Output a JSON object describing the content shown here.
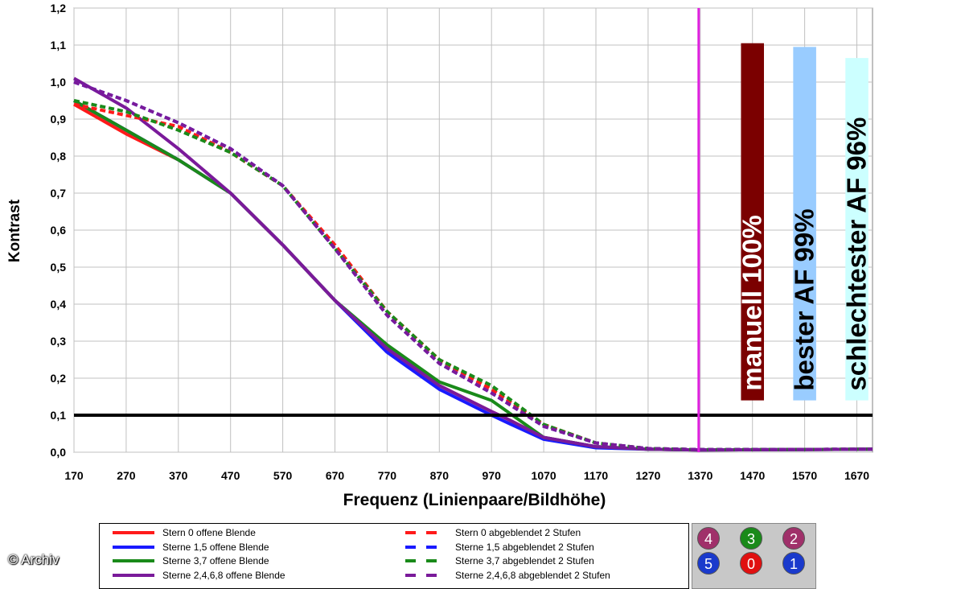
{
  "chart_data": {
    "type": "line",
    "title": "",
    "xlabel": "Frequenz (Linienpaare/Bildhöhe)",
    "ylabel": "Kontrast",
    "xlim": [
      170,
      1700
    ],
    "ylim": [
      0,
      1.2
    ],
    "x_ticks": [
      "170",
      "270",
      "370",
      "470",
      "570",
      "670",
      "770",
      "870",
      "970",
      "1070",
      "1170",
      "1270",
      "1370",
      "1470",
      "1570",
      "1670"
    ],
    "y_ticks": [
      "0,0",
      "0,1",
      "0,2",
      "0,3",
      "0,4",
      "0,5",
      "0,6",
      "0,7",
      "0,8",
      "0,9",
      "1,0",
      "1,1",
      "1,2"
    ],
    "grid": true,
    "reference_hline": 0.1,
    "reference_vline": 1370,
    "series": [
      {
        "name": "Stern 0 offene Blende",
        "color": "#ff1a1a",
        "dash": false,
        "x": [
          170,
          270,
          370,
          470,
          570,
          670,
          770,
          870,
          970,
          1000,
          1070,
          1170,
          1270,
          1370,
          1700
        ],
        "y": [
          0.94,
          0.86,
          0.79,
          0.7,
          0.56,
          0.41,
          0.28,
          0.18,
          0.11,
          0.09,
          0.04,
          0.015,
          0.008,
          0.006,
          0.008
        ]
      },
      {
        "name": "Sterne 1,5 offene Blende",
        "color": "#1a1aff",
        "dash": false,
        "x": [
          170,
          270,
          370,
          470,
          570,
          670,
          770,
          870,
          970,
          1000,
          1070,
          1170,
          1270,
          1370,
          1700
        ],
        "y": [
          0.95,
          0.87,
          0.79,
          0.7,
          0.56,
          0.41,
          0.27,
          0.17,
          0.1,
          0.08,
          0.035,
          0.012,
          0.008,
          0.006,
          0.008
        ]
      },
      {
        "name": "Sterne 3,7 offene Blende",
        "color": "#1a8a1a",
        "dash": false,
        "x": [
          170,
          270,
          370,
          470,
          570,
          670,
          770,
          870,
          970,
          1000,
          1070,
          1170,
          1270,
          1370,
          1700
        ],
        "y": [
          0.95,
          0.87,
          0.79,
          0.7,
          0.56,
          0.41,
          0.29,
          0.19,
          0.14,
          0.11,
          0.04,
          0.015,
          0.008,
          0.006,
          0.008
        ]
      },
      {
        "name": "Sterne 2,4,6,8 offene Blende",
        "color": "#7a1a9a",
        "dash": false,
        "x": [
          170,
          270,
          370,
          470,
          570,
          670,
          770,
          870,
          970,
          1000,
          1070,
          1170,
          1270,
          1370,
          1700
        ],
        "y": [
          1.01,
          0.93,
          0.82,
          0.7,
          0.56,
          0.41,
          0.28,
          0.18,
          0.11,
          0.09,
          0.04,
          0.015,
          0.008,
          0.006,
          0.008
        ]
      },
      {
        "name": "Stern 0 abgeblendet 2 Stufen",
        "color": "#ff1a1a",
        "dash": true,
        "x": [
          170,
          270,
          370,
          470,
          570,
          670,
          770,
          870,
          970,
          1070,
          1170,
          1270,
          1370,
          1700
        ],
        "y": [
          0.94,
          0.91,
          0.88,
          0.81,
          0.72,
          0.56,
          0.38,
          0.25,
          0.17,
          0.075,
          0.025,
          0.01,
          0.007,
          0.008
        ]
      },
      {
        "name": "Sterne 1,5 abgeblendet 2 Stufen",
        "color": "#1a1aff",
        "dash": true,
        "x": [
          170,
          270,
          370,
          470,
          570,
          670,
          770,
          870,
          970,
          1070,
          1170,
          1270,
          1370,
          1700
        ],
        "y": [
          1.0,
          0.95,
          0.89,
          0.82,
          0.72,
          0.55,
          0.37,
          0.24,
          0.16,
          0.07,
          0.025,
          0.01,
          0.007,
          0.008
        ]
      },
      {
        "name": "Sterne 3,7 abgeblendet 2 Stufen",
        "color": "#1a8a1a",
        "dash": true,
        "x": [
          170,
          270,
          370,
          470,
          570,
          670,
          770,
          870,
          970,
          1070,
          1170,
          1270,
          1370,
          1700
        ],
        "y": [
          0.95,
          0.92,
          0.87,
          0.81,
          0.72,
          0.55,
          0.38,
          0.25,
          0.18,
          0.075,
          0.025,
          0.01,
          0.007,
          0.008
        ]
      },
      {
        "name": "Sterne 2,4,6,8 abgeblendet 2 Stufen",
        "color": "#7a1a9a",
        "dash": true,
        "x": [
          170,
          270,
          370,
          470,
          570,
          670,
          770,
          870,
          970,
          1070,
          1170,
          1270,
          1370,
          1700
        ],
        "y": [
          1.0,
          0.95,
          0.89,
          0.82,
          0.72,
          0.55,
          0.37,
          0.24,
          0.16,
          0.07,
          0.025,
          0.01,
          0.007,
          0.008
        ]
      }
    ],
    "bars": [
      {
        "label": "manuell 100%",
        "value": 1.105,
        "color": "#7b0000",
        "text_color": "#ffffff"
      },
      {
        "label": "bester AF 99%",
        "value": 1.095,
        "color": "#99ccff",
        "text_color": "#000000"
      },
      {
        "label": "schlechtester AF 96%",
        "value": 1.065,
        "color": "#ccffff",
        "text_color": "#000000"
      }
    ]
  },
  "legend": {
    "col1": [
      {
        "label": "Stern 0 offene Blende",
        "color": "#ff1a1a",
        "dash": false
      },
      {
        "label": "Sterne 1,5 offene Blende",
        "color": "#1a1aff",
        "dash": false
      },
      {
        "label": "Sterne 3,7 offene Blende",
        "color": "#1a8a1a",
        "dash": false
      },
      {
        "label": "Sterne 2,4,6,8 offene Blende",
        "color": "#7a1a9a",
        "dash": false
      }
    ],
    "col2": [
      {
        "label": "Stern 0 abgeblendet 2 Stufen",
        "color": "#ff1a1a",
        "dash": true
      },
      {
        "label": "Sterne 1,5 abgeblendet 2 Stufen",
        "color": "#1a1aff",
        "dash": true
      },
      {
        "label": "Sterne 3,7 abgeblendet 2 Stufen",
        "color": "#1a8a1a",
        "dash": true
      },
      {
        "label": "Sterne 2,4,6,8 abgeblendet 2 Stufen",
        "color": "#7a1a9a",
        "dash": true
      }
    ]
  },
  "star_dots": [
    {
      "label": "4",
      "color": "#a0306a"
    },
    {
      "label": "3",
      "color": "#1a8a1a"
    },
    {
      "label": "2",
      "color": "#a0306a"
    },
    {
      "label": "5",
      "color": "#1a3acc"
    },
    {
      "label": "0",
      "color": "#e01010"
    },
    {
      "label": "1",
      "color": "#1a3acc"
    }
  ],
  "copyright": "© Archiv"
}
